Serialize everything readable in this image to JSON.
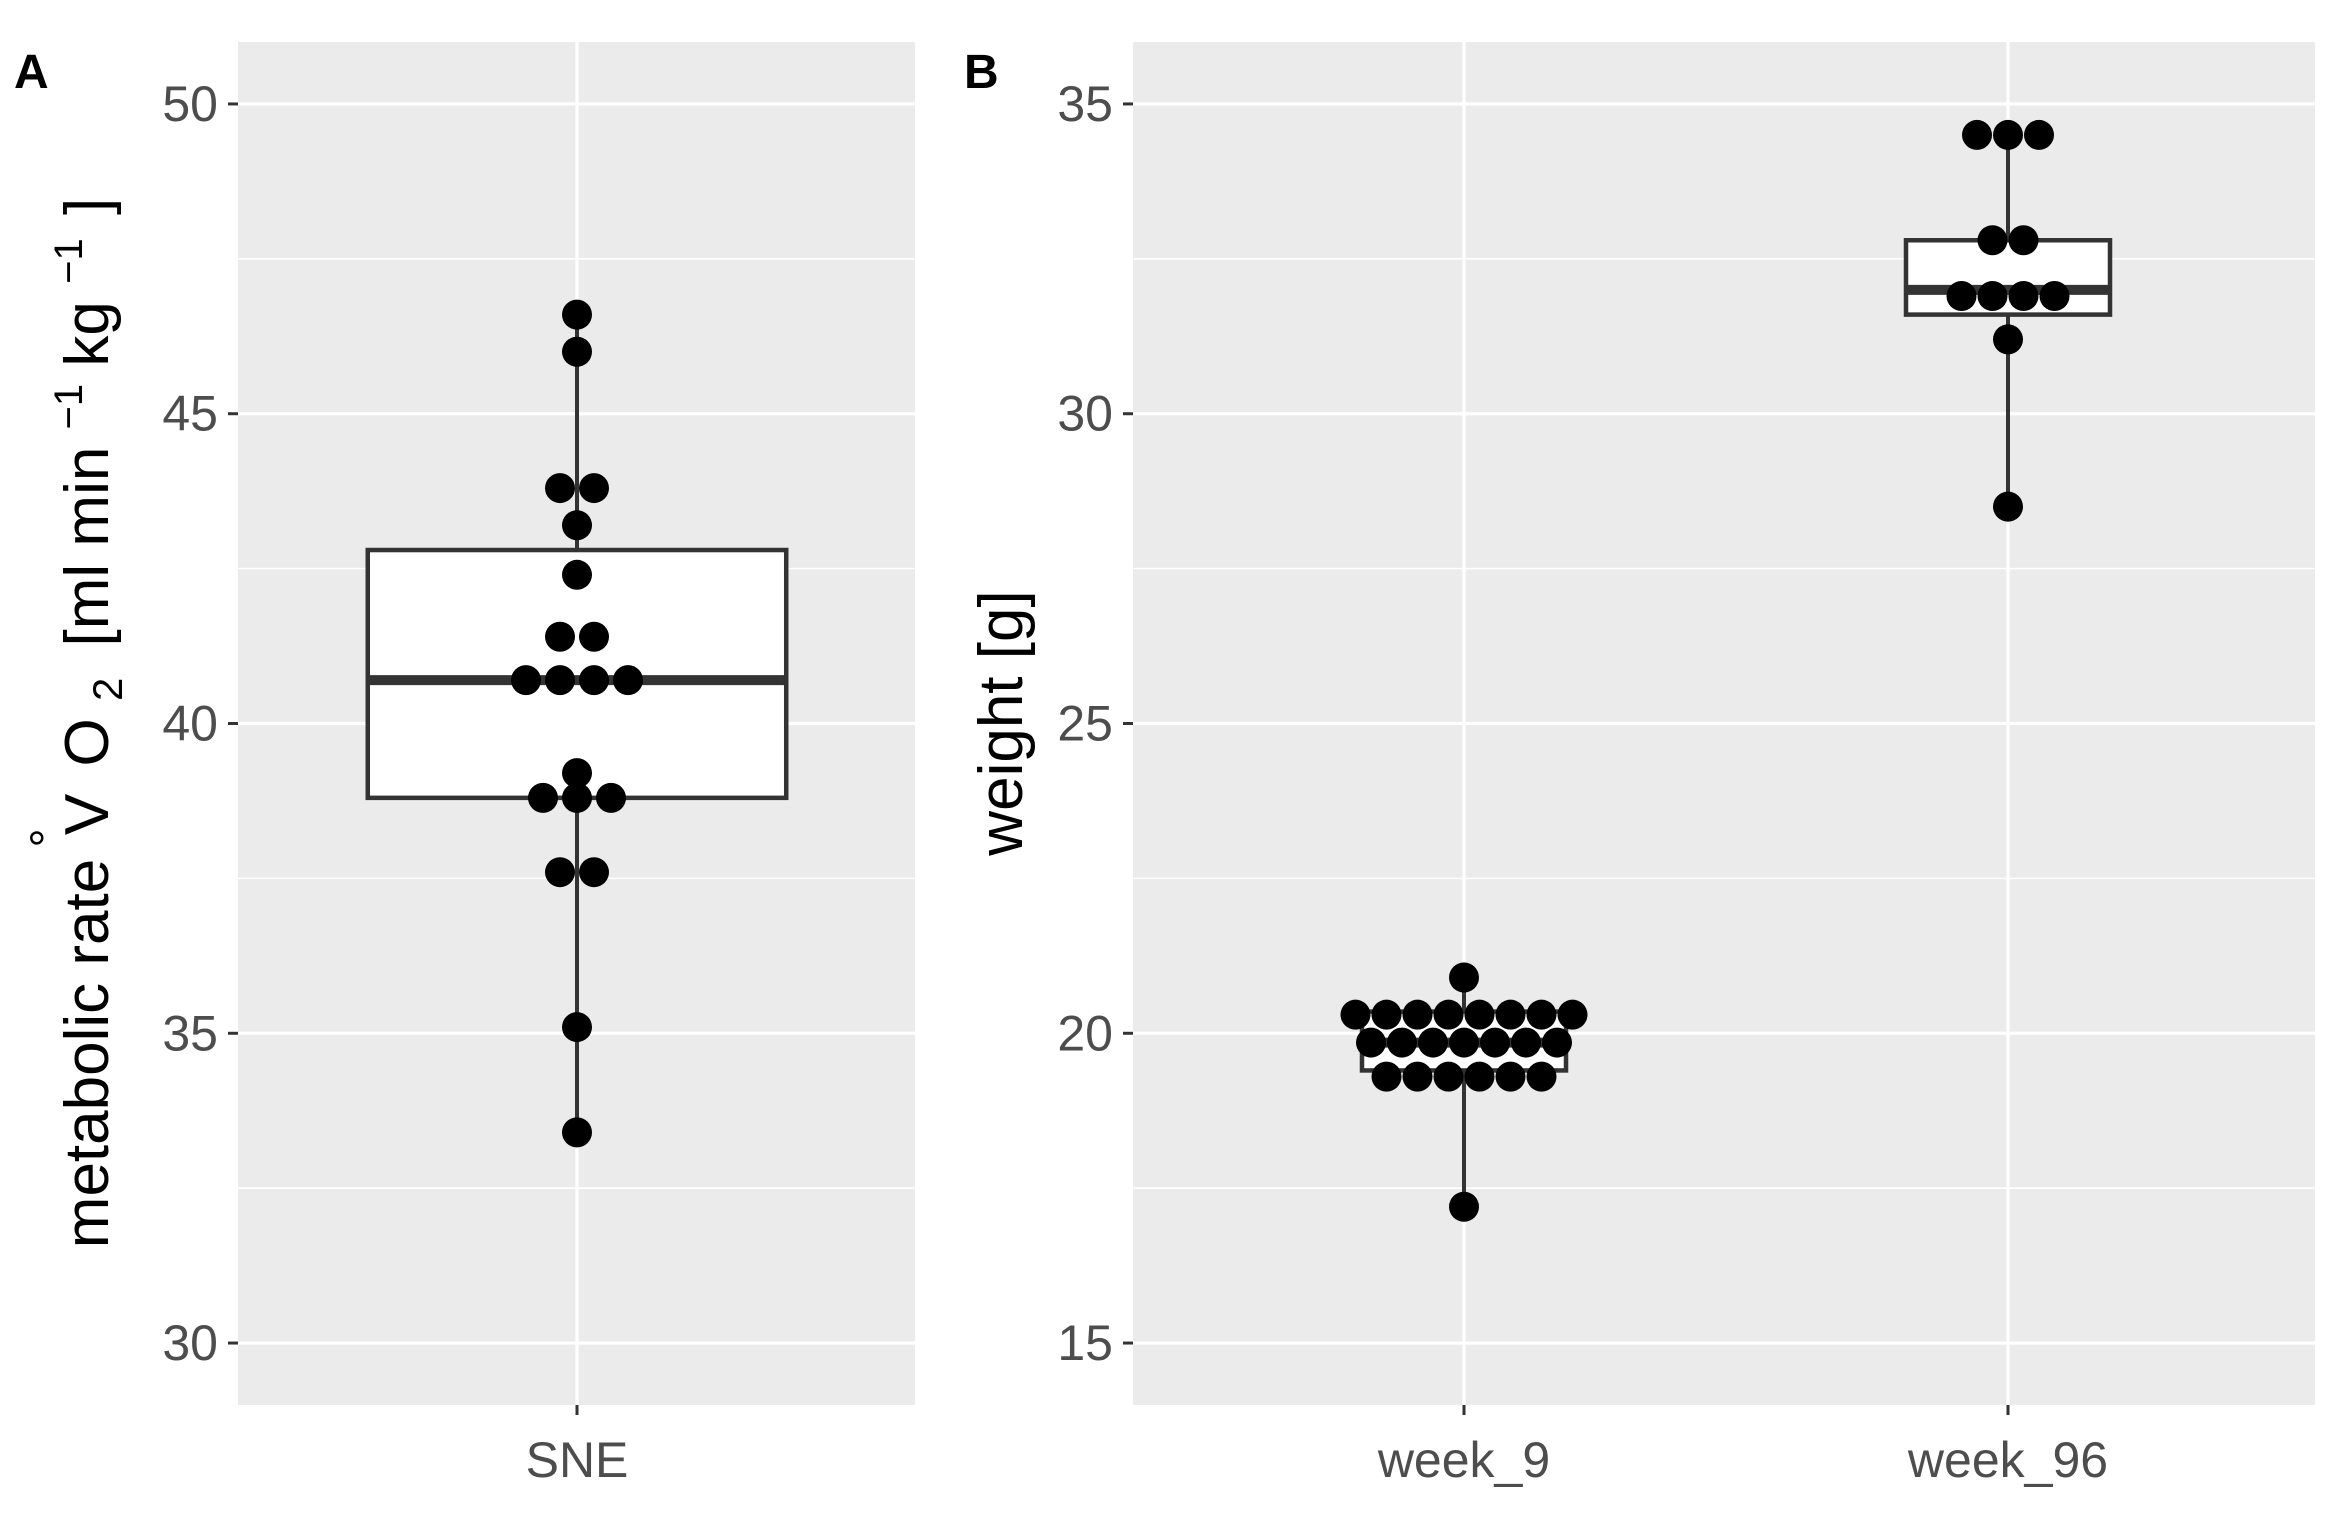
{
  "chart_data": [
    {
      "type": "box",
      "panel_label": "A",
      "categories": [
        "SNE"
      ],
      "ylabel": {
        "prefix": "metabolic rate",
        "accent": "°",
        "v": "V",
        "o": "O",
        "o_sub": "2",
        "bracket_open": "[ml min",
        "exp1": "−1",
        "kg": " kg",
        "exp2": "−1",
        "bracket_close": "]"
      },
      "ylim": [
        29.0,
        51.0
      ],
      "yticks": [
        30,
        35,
        40,
        45,
        50
      ],
      "tick_labels": [
        "30",
        "35",
        "40",
        "45",
        "50"
      ],
      "grid": true,
      "boxes": [
        {
          "category": "SNE",
          "min": 33.4,
          "q1": 38.8,
          "median": 40.7,
          "q3": 42.8,
          "max": 46.6
        }
      ],
      "points": [
        {
          "category": "SNE",
          "values": [
            46.6,
            46.0,
            43.8,
            43.8,
            43.2,
            42.4,
            41.4,
            41.4,
            40.7,
            40.7,
            40.7,
            40.7,
            39.2,
            38.8,
            38.8,
            38.8,
            37.6,
            37.6,
            35.1,
            33.4
          ]
        }
      ]
    },
    {
      "type": "box",
      "panel_label": "B",
      "categories": [
        "week_9",
        "week_96"
      ],
      "ylabel": "weight [g]",
      "ylim": [
        14.0,
        36.0
      ],
      "yticks": [
        15,
        20,
        25,
        30,
        35
      ],
      "tick_labels": [
        "15",
        "20",
        "25",
        "30",
        "35"
      ],
      "grid": true,
      "boxes": [
        {
          "category": "week_9",
          "min": 17.2,
          "q1": 19.4,
          "median": 19.85,
          "q3": 20.35,
          "max": 20.9
        },
        {
          "category": "week_96",
          "min": 28.5,
          "q1": 31.6,
          "median": 32.0,
          "q3": 32.8,
          "max": 34.5
        }
      ],
      "points": [
        {
          "category": "week_9",
          "values": [
            20.9,
            20.3,
            20.3,
            20.3,
            20.3,
            20.3,
            20.3,
            20.3,
            20.3,
            19.85,
            19.85,
            19.85,
            19.85,
            19.85,
            19.85,
            19.85,
            19.3,
            19.3,
            19.3,
            19.3,
            19.3,
            19.3,
            17.2
          ]
        },
        {
          "category": "week_96",
          "values": [
            34.5,
            34.5,
            34.5,
            32.8,
            32.8,
            31.9,
            31.9,
            31.9,
            31.9,
            31.2,
            28.5
          ]
        }
      ]
    }
  ],
  "colors": {
    "panel_bg": "#ebebeb",
    "grid_major": "#ffffff",
    "box_stroke": "#333333",
    "box_fill": "#ffffff",
    "point": "#000000"
  }
}
